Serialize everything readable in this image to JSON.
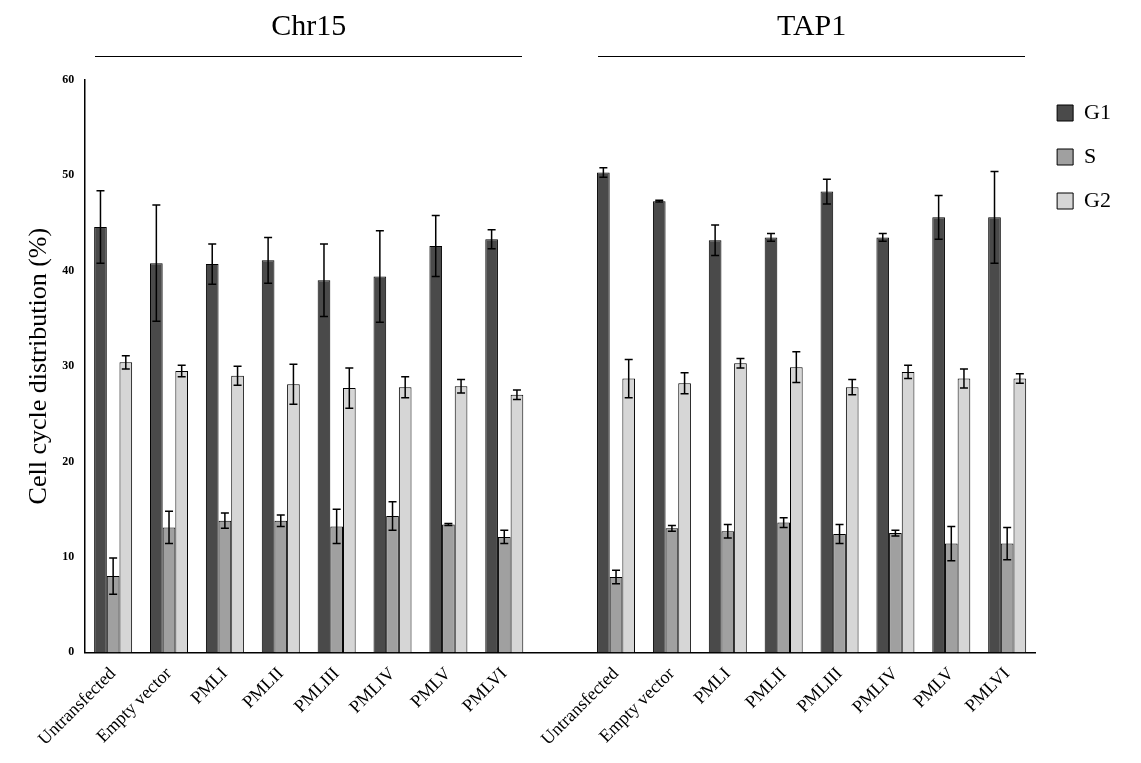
{
  "chart_data": {
    "type": "bar",
    "ylabel": "Cell cycle distribution (%)",
    "annotations": [
      "Chr15",
      "TAP1"
    ],
    "categories": [
      "Untransfected",
      "Empty vector",
      "PMLI",
      "PMLII",
      "PMLIII",
      "PMLIV",
      "PMLV",
      "PMLVI",
      null,
      "Untransfected",
      "Empty vector",
      "PMLI",
      "PMLII",
      "PMLIII",
      "PMLIV",
      "PMLV",
      "PMLVI"
    ],
    "series": [
      {
        "name": "G1",
        "color": "#4a4a4a",
        "values": [
          44.6,
          40.8,
          40.7,
          41.1,
          39.0,
          39.4,
          42.6,
          43.3,
          null,
          50.3,
          47.3,
          43.2,
          43.5,
          48.3,
          43.5,
          45.6,
          45.6
        ],
        "errors": [
          3.8,
          6.1,
          2.1,
          2.4,
          3.8,
          4.8,
          3.2,
          1.0,
          null,
          0.5,
          0.1,
          1.6,
          0.4,
          1.3,
          0.4,
          2.3,
          4.8
        ]
      },
      {
        "name": "S",
        "color": "#a0a0a0",
        "values": [
          8.0,
          13.1,
          13.8,
          13.8,
          13.2,
          14.3,
          13.4,
          12.1,
          null,
          7.9,
          13.0,
          12.7,
          13.6,
          12.4,
          12.5,
          11.4,
          11.4
        ],
        "errors": [
          1.9,
          1.7,
          0.8,
          0.6,
          1.8,
          1.5,
          0.1,
          0.7,
          null,
          0.7,
          0.3,
          0.7,
          0.5,
          1.0,
          0.3,
          1.8,
          1.7
        ]
      },
      {
        "name": "G2",
        "color": "#d6d6d6",
        "values": [
          30.4,
          29.5,
          29.0,
          28.1,
          27.7,
          27.8,
          27.9,
          27.0,
          null,
          28.7,
          28.2,
          30.3,
          29.9,
          27.8,
          29.4,
          28.7,
          28.7
        ],
        "errors": [
          0.7,
          0.6,
          1.0,
          2.1,
          2.1,
          1.1,
          0.7,
          0.5,
          null,
          2.0,
          1.1,
          0.5,
          1.6,
          0.8,
          0.7,
          1.0,
          0.5
        ]
      }
    ],
    "ylim": [
      0,
      60
    ],
    "yticks": [
      0,
      10,
      20,
      30,
      40,
      50,
      60
    ],
    "grid": false,
    "legend": "top right"
  }
}
